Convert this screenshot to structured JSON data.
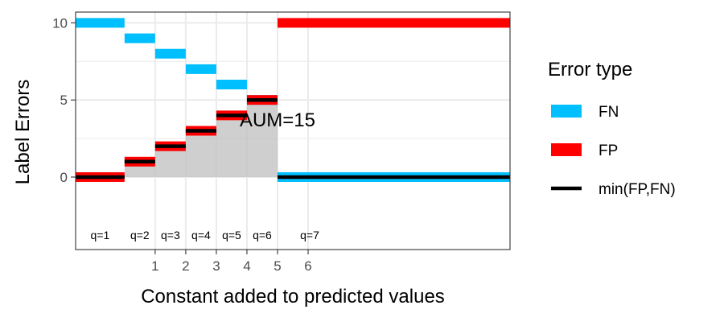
{
  "chart_data": {
    "type": "line",
    "title": "",
    "xlabel": "Constant added to predicted values",
    "ylabel": "Label Errors",
    "x_ticks": [
      1,
      2,
      3,
      4,
      5,
      6
    ],
    "y_ticks": [
      0,
      5,
      10
    ],
    "xlim": [
      -1.6,
      12.6
    ],
    "ylim": [
      -4.7,
      10.7
    ],
    "grid": true,
    "legend": {
      "title": "Error type",
      "placement": "right",
      "entries": [
        {
          "label": "FN",
          "color": "#00bfff",
          "kind": "band"
        },
        {
          "label": "FP",
          "color": "#ff0000",
          "kind": "band"
        },
        {
          "label": "min(FP,FN)",
          "color": "#000000",
          "kind": "line"
        }
      ]
    },
    "intervals": [
      {
        "q": "q=1",
        "min": -1.6,
        "max": 0,
        "fp": 0,
        "fn": 10
      },
      {
        "q": "q=2",
        "min": 0,
        "max": 1,
        "fp": 1,
        "fn": 9
      },
      {
        "q": "q=3",
        "min": 1,
        "max": 2,
        "fp": 2,
        "fn": 8
      },
      {
        "q": "q=4",
        "min": 2,
        "max": 3,
        "fp": 3,
        "fn": 7
      },
      {
        "q": "q=5",
        "min": 3,
        "max": 4,
        "fp": 4,
        "fn": 6
      },
      {
        "q": "q=6",
        "min": 4,
        "max": 5,
        "fp": 5,
        "fn": 5
      },
      {
        "q": "q=7",
        "min": 5,
        "max": 12.6,
        "fp": 10,
        "fn": 0
      }
    ],
    "annotation": {
      "text": "AUM=15",
      "x": 5,
      "y": 3.7
    },
    "colors": {
      "fn": "#00bfff",
      "fp": "#ff0000",
      "min": "#000000",
      "area": "#bfbfbf",
      "grid": "#ebebeb",
      "panel_border": "#333333"
    }
  }
}
